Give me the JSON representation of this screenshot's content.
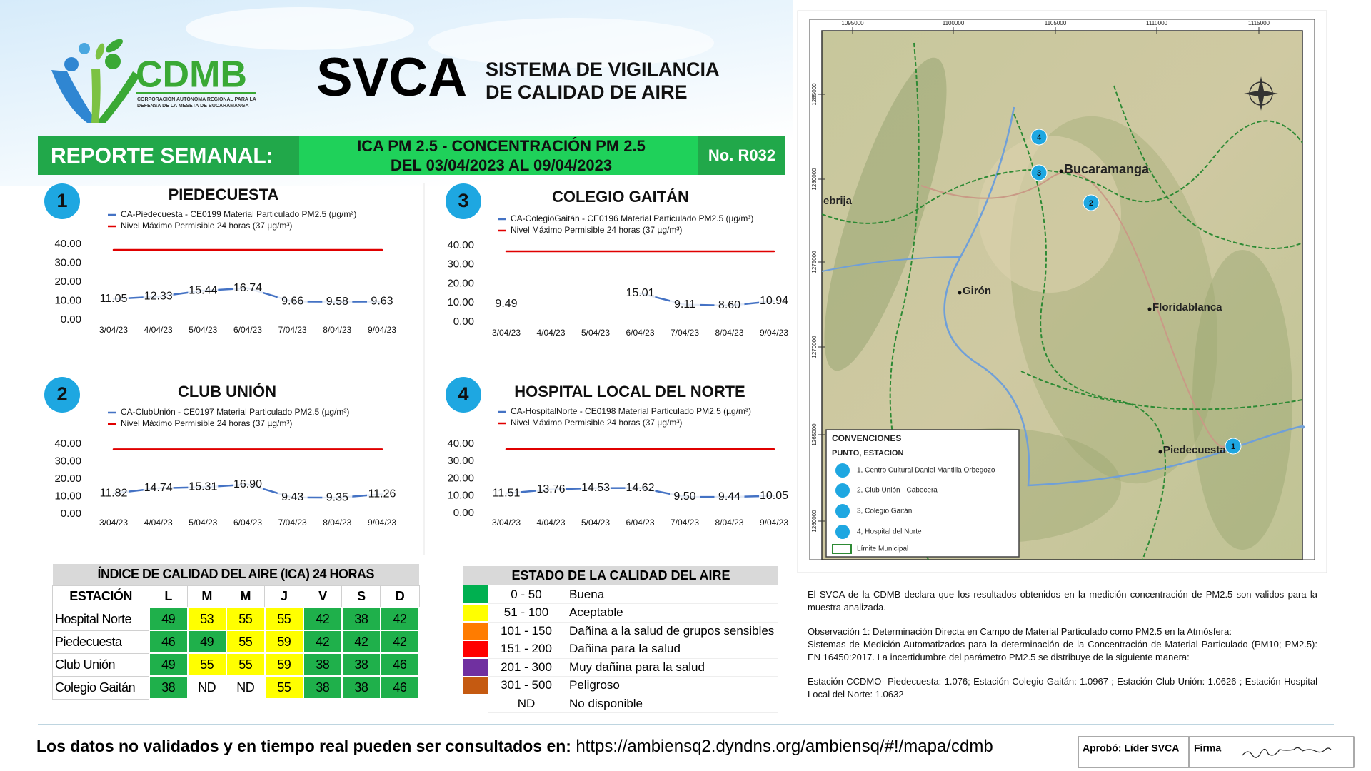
{
  "header": {
    "logo_name": "CDMB",
    "logo_subtitle": [
      "CORPORACIÓN AUTÓNOMA REGIONAL PARA LA",
      "DEFENSA DE LA MESETA DE BUCARAMANGA"
    ],
    "title": "SVCA",
    "subtitle": [
      "SISTEMA DE VIGILANCIA",
      "DE CALIDAD DE AIRE"
    ]
  },
  "report_bar": {
    "label": "REPORTE SEMANAL:",
    "lines": [
      "ICA PM 2.5 - CONCENTRACIÓN PM 2.5",
      "DEL 03/04/2023 AL 09/04/2023"
    ],
    "number": "No. R032"
  },
  "chart_data": [
    {
      "type": "line",
      "badge": "1",
      "title": "PIEDECUESTA",
      "categories": [
        "3/04/23",
        "4/04/23",
        "5/04/23",
        "6/04/23",
        "7/04/23",
        "8/04/23",
        "9/04/23"
      ],
      "series": [
        {
          "name": "CA-Piedecuesta - CE0199 Material Particulado PM2.5 (µg/m³)",
          "color": "#4472c4",
          "values": [
            11.05,
            12.33,
            15.44,
            16.74,
            9.66,
            9.58,
            9.63
          ]
        },
        {
          "name": "Nivel Máximo Permisible 24 horas (37 µg/m³)",
          "color": "#e00000",
          "values": [
            37,
            37,
            37,
            37,
            37,
            37,
            37
          ]
        }
      ],
      "ylim": [
        0,
        40
      ],
      "yticks": [
        {
          "value": 0,
          "label": "0.00"
        },
        {
          "value": 10,
          "label": "10.00"
        },
        {
          "value": 20,
          "label": "20.00"
        },
        {
          "value": 30,
          "label": "30.00"
        },
        {
          "value": 40,
          "label": "40.00"
        }
      ]
    },
    {
      "type": "line",
      "badge": "2",
      "title": "CLUB UNIÓN",
      "categories": [
        "3/04/23",
        "4/04/23",
        "5/04/23",
        "6/04/23",
        "7/04/23",
        "8/04/23",
        "9/04/23"
      ],
      "series": [
        {
          "name": "CA-ClubUnión - CE0197 Material Particulado PM2.5 (µg/m³)",
          "color": "#4472c4",
          "values": [
            11.82,
            14.74,
            15.31,
            16.9,
            9.43,
            9.35,
            11.26
          ],
          "value_labels": [
            "11.82",
            "14.74",
            "15.31",
            "16.90",
            "9.43",
            "9.35",
            "11.26"
          ]
        },
        {
          "name": "Nivel Máximo Permisible 24 horas (37 µg/m³)",
          "color": "#e00000",
          "values": [
            37,
            37,
            37,
            37,
            37,
            37,
            37
          ]
        }
      ],
      "ylim": [
        0,
        40
      ],
      "yticks": [
        {
          "value": 0,
          "label": "0.00"
        },
        {
          "value": 10,
          "label": "10.00"
        },
        {
          "value": 20,
          "label": "20.00"
        },
        {
          "value": 30,
          "label": "30.00"
        },
        {
          "value": 40,
          "label": "40.00"
        }
      ]
    },
    {
      "type": "line",
      "badge": "3",
      "title": "COLEGIO GAITÁN",
      "categories": [
        "3/04/23",
        "4/04/23",
        "5/04/23",
        "6/04/23",
        "7/04/23",
        "8/04/23",
        "9/04/23"
      ],
      "series": [
        {
          "name": "CA-ColegioGaitán - CE0196 Material Particulado PM2.5 (µg/m³)",
          "color": "#4472c4",
          "values": [
            9.49,
            null,
            null,
            15.01,
            9.11,
            8.6,
            10.94
          ],
          "value_labels": [
            "9.49",
            null,
            null,
            "15.01",
            "9.11",
            "8.60",
            "10.94"
          ]
        },
        {
          "name": "Nivel Máximo Permisible 24 horas (37 µg/m³)",
          "color": "#e00000",
          "values": [
            37,
            37,
            37,
            37,
            37,
            37,
            37
          ]
        }
      ],
      "ylim": [
        0,
        40
      ],
      "yticks": [
        {
          "value": 0,
          "label": "0.00"
        },
        {
          "value": 10,
          "label": "10.00"
        },
        {
          "value": 20,
          "label": "20.00"
        },
        {
          "value": 30,
          "label": "30.00"
        },
        {
          "value": 40,
          "label": "40.00"
        }
      ]
    },
    {
      "type": "line",
      "badge": "4",
      "title": "HOSPITAL LOCAL DEL NORTE",
      "categories": [
        "3/04/23",
        "4/04/23",
        "5/04/23",
        "6/04/23",
        "7/04/23",
        "8/04/23",
        "9/04/23"
      ],
      "series": [
        {
          "name": "CA-HospitalNorte - CE0198 Material Particulado PM2.5 (µg/m³)",
          "color": "#4472c4",
          "values": [
            11.51,
            13.76,
            14.53,
            14.62,
            9.5,
            9.44,
            10.05
          ],
          "value_labels": [
            "11.51",
            "13.76",
            "14.53",
            "14.62",
            "9.50",
            "9.44",
            "10.05"
          ]
        },
        {
          "name": "Nivel Máximo Permisible 24 horas (37 µg/m³)",
          "color": "#e00000",
          "values": [
            37,
            37,
            37,
            37,
            37,
            37,
            37
          ]
        }
      ],
      "ylim": [
        0,
        40
      ],
      "yticks": [
        {
          "value": 0,
          "label": "0.00"
        },
        {
          "value": 10,
          "label": "10.00"
        },
        {
          "value": 20,
          "label": "20.00"
        },
        {
          "value": 30,
          "label": "30.00"
        },
        {
          "value": 40,
          "label": "40.00"
        }
      ]
    }
  ],
  "ica_table": {
    "title": "ÍNDICE DE CALIDAD DEL AIRE (ICA) 24 HORAS",
    "columns": [
      "ESTACIÓN",
      "L",
      "M",
      "M",
      "J",
      "V",
      "S",
      "D"
    ],
    "rows": [
      {
        "station": "Hospital Norte",
        "values": [
          49,
          53,
          55,
          55,
          42,
          38,
          42
        ],
        "colors": [
          "#1fb04b",
          "#ffff00",
          "#ffff00",
          "#ffff00",
          "#1fb04b",
          "#1fb04b",
          "#1fb04b"
        ]
      },
      {
        "station": "Piedecuesta",
        "values": [
          46,
          49,
          55,
          59,
          42,
          42,
          42
        ],
        "colors": [
          "#1fb04b",
          "#1fb04b",
          "#ffff00",
          "#ffff00",
          "#1fb04b",
          "#1fb04b",
          "#1fb04b"
        ]
      },
      {
        "station": "Club Unión",
        "values": [
          49,
          55,
          55,
          59,
          38,
          38,
          46
        ],
        "colors": [
          "#1fb04b",
          "#ffff00",
          "#ffff00",
          "#ffff00",
          "#1fb04b",
          "#1fb04b",
          "#1fb04b"
        ]
      },
      {
        "station": "Colegio Gaitán",
        "values": [
          38,
          "ND",
          "ND",
          55,
          38,
          38,
          46
        ],
        "colors": [
          "#1fb04b",
          null,
          null,
          "#ffff00",
          "#1fb04b",
          "#1fb04b",
          "#1fb04b"
        ]
      }
    ]
  },
  "status_table": {
    "title": "ESTADO DE LA CALIDAD DEL AIRE",
    "rows": [
      {
        "range": "0 - 50",
        "label": "Buena",
        "color": "#00b050"
      },
      {
        "range": "51 - 100",
        "label": "Aceptable",
        "color": "#ffff00"
      },
      {
        "range": "101 - 150",
        "label": "Dañina a la salud de grupos sensibles",
        "color": "#ff7c00"
      },
      {
        "range": "151 - 200",
        "label": "Dañina para la salud",
        "color": "#ff0000"
      },
      {
        "range": "201 - 300",
        "label": "Muy dañina para la salud",
        "color": "#7030a0"
      },
      {
        "range": "301 - 500",
        "label": "Peligroso",
        "color": "#c55a11"
      },
      {
        "range": "ND",
        "label": "No disponible",
        "color": null
      }
    ]
  },
  "map": {
    "x_labels": [
      "1095000",
      "1100000",
      "1105000",
      "1110000",
      "1115000"
    ],
    "y_labels": [
      "1285000",
      "1280000",
      "1275000",
      "1270000",
      "1265000",
      "1260000"
    ],
    "places": [
      "ebrija",
      "Bucaramanga",
      "Girón",
      "Floridablanca",
      "Piedecuesta"
    ],
    "markers": [
      "1",
      "2",
      "3",
      "4"
    ],
    "legend": {
      "title": "CONVENCIONES",
      "subtitle": "PUNTO, ESTACION",
      "items": [
        "1, Centro Cultural Daniel Mantilla Orbegozo",
        "2, Club Unión - Cabecera",
        "3, Colegio Gaitán",
        "4, Hospital del Norte"
      ],
      "boundary": "Límite Municipal"
    }
  },
  "notes": [
    "El SVCA  de la CDMB declara que los resultados obtenidos en la medición concentración de PM2.5 son validos para la muestra  analizada.",
    "Observación 1: Determinación Directa en Campo de Material Particulado como PM2.5 en la Atmósfera:",
    "Sistemas de Medición Automatizados para la  determinación de la Concentración de Material Particulado (PM10; PM2.5): EN 16450:2017. La incertidumbre del parámetro PM2.5 se distribuye de la siguiente manera:",
    "Estación CCDMO- Piedecuesta: 1.076; Estación Colegio Gaitán: 1.0967 ; Estación Club Unión: 1.0626 ; Estación Hospital Local del Norte: 1.0632"
  ],
  "footer": {
    "text": "Los datos no validados y en tiempo real pueden ser consultados en:",
    "url": "https://ambiensq2.dyndns.org/ambiensq/#!/mapa/cdmb",
    "approved": "Aprobó: Líder SVCA",
    "signature": "Firma"
  }
}
